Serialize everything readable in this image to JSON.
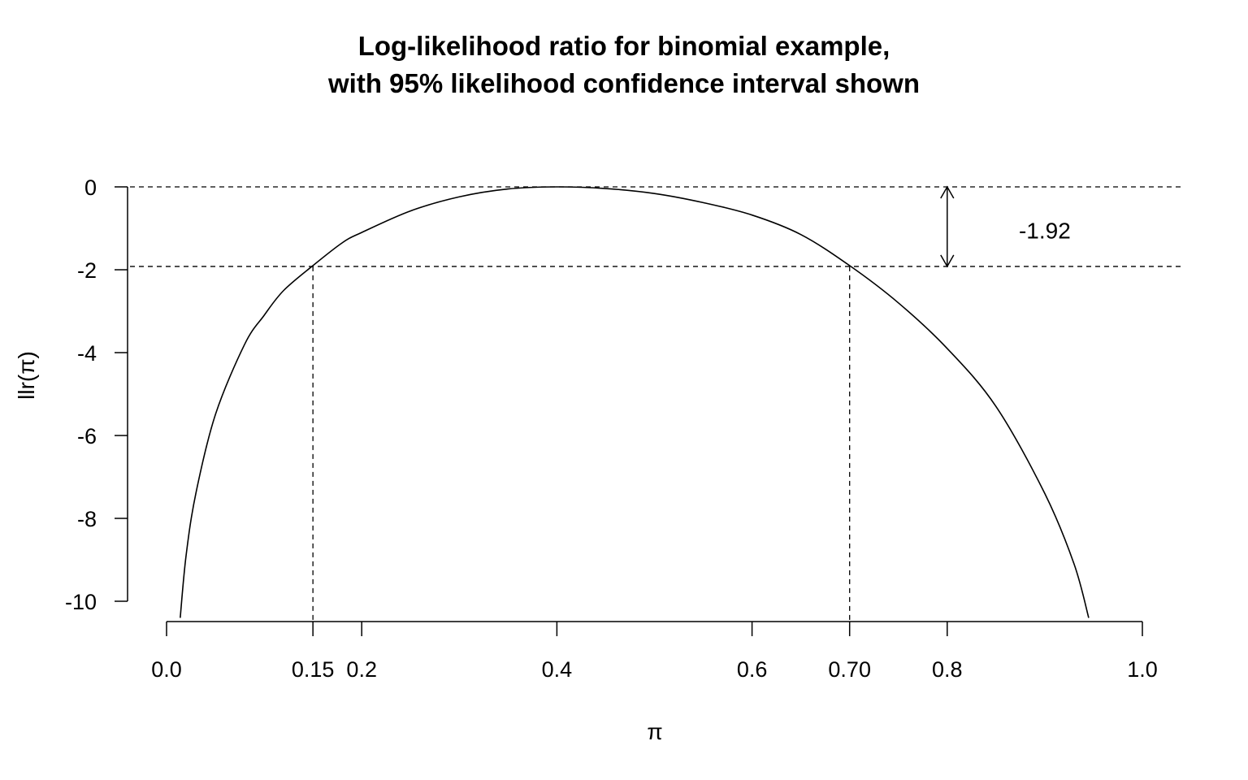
{
  "chart_data": {
    "type": "line",
    "title": [
      "Log-likelihood ratio for binomial example,",
      "with 95% likelihood confidence interval shown"
    ],
    "xlabel": "π",
    "ylabel": "llr(π)",
    "xlim": [
      0.0,
      1.0
    ],
    "ylim": [
      -10,
      0
    ],
    "x_ticks": [
      0.0,
      0.15,
      0.2,
      0.4,
      0.6,
      0.7,
      0.8,
      1.0
    ],
    "x_tick_labels": [
      "0.0",
      "0.15",
      "0.2",
      "0.4",
      "0.6",
      "0.70",
      "0.8",
      "1.0"
    ],
    "y_ticks": [
      0,
      -2,
      -4,
      -6,
      -8,
      -10
    ],
    "y_tick_labels": [
      "0",
      "-2",
      "-4",
      "-6",
      "-8",
      "-10"
    ],
    "series": [
      {
        "style": "solid",
        "x": [
          0.014,
          0.02,
          0.03,
          0.05,
          0.08,
          0.1,
          0.12,
          0.15,
          0.18,
          0.2,
          0.25,
          0.3,
          0.35,
          0.4,
          0.45,
          0.5,
          0.55,
          0.6,
          0.65,
          0.7,
          0.75,
          0.8,
          0.85,
          0.9,
          0.93,
          0.945
        ],
        "y": [
          -10.4,
          -8.9,
          -7.4,
          -5.5,
          -3.8,
          -3.1,
          -2.5,
          -1.9,
          -1.35,
          -1.1,
          -0.58,
          -0.24,
          -0.05,
          0.0,
          -0.04,
          -0.16,
          -0.38,
          -0.68,
          -1.15,
          -1.9,
          -2.8,
          -3.9,
          -5.3,
          -7.4,
          -9.1,
          -10.4
        ]
      }
    ],
    "reference_lines": {
      "horizontal": [
        0,
        -1.92
      ],
      "vertical": [
        {
          "x": 0.15,
          "y_top": -1.92
        },
        {
          "x": 0.7,
          "y_top": -1.92
        }
      ]
    },
    "annotation": {
      "text": "-1.92",
      "arrow_x": 0.8,
      "arrow_from": 0,
      "arrow_to": -1.92,
      "label_x": 0.9,
      "label_y": -1.05
    }
  }
}
